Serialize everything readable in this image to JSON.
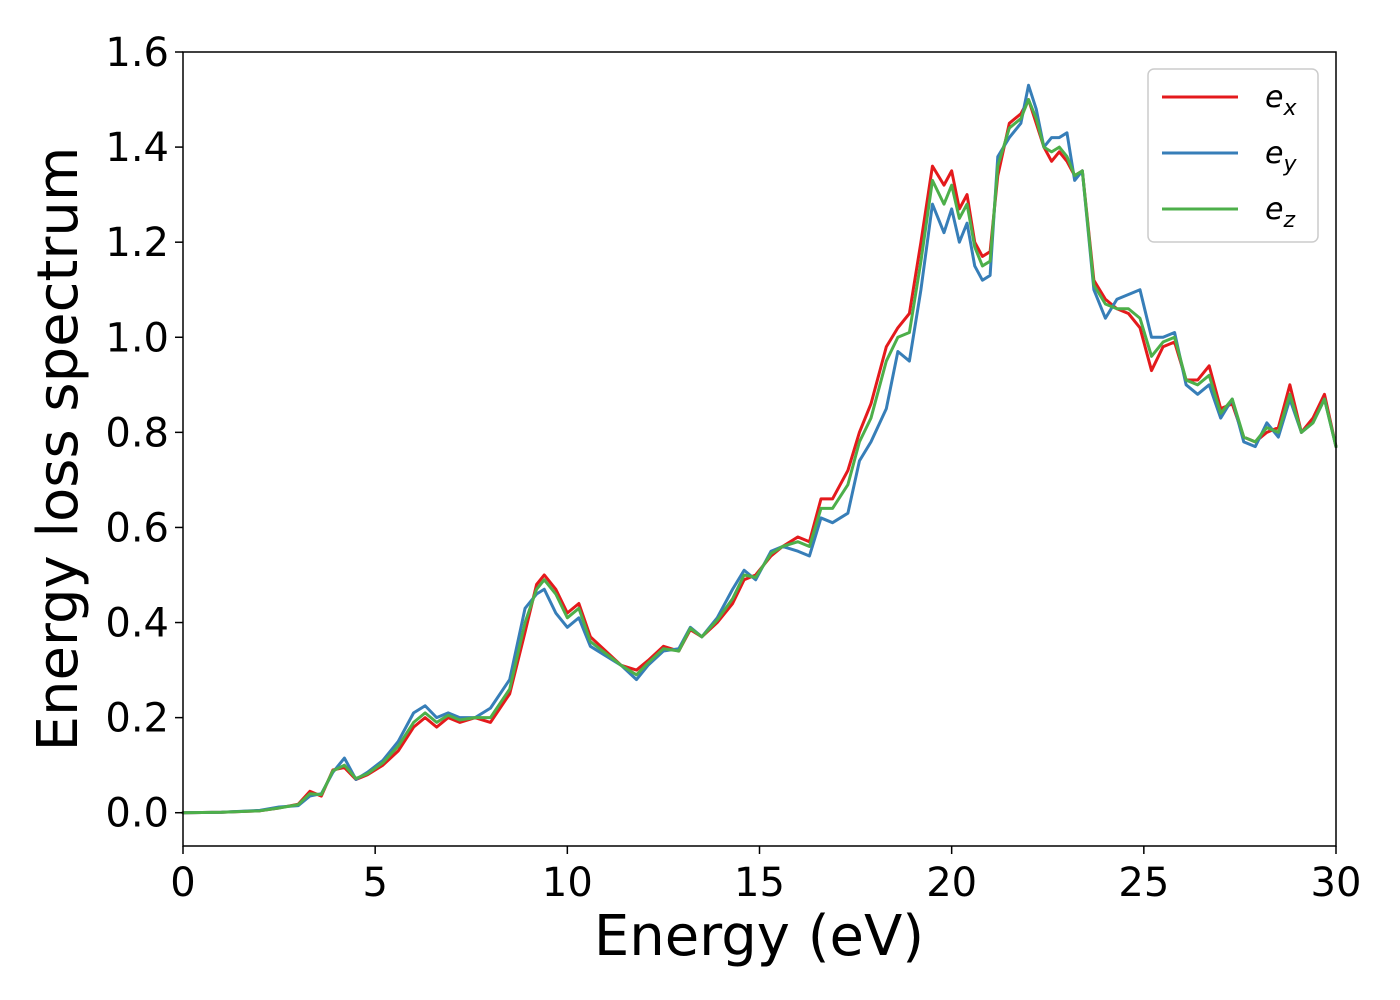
{
  "chart_data": {
    "type": "line",
    "title": "",
    "xlabel": "Energy (eV)",
    "ylabel": "Energy loss spectrum",
    "xlim": [
      0,
      30
    ],
    "ylim": [
      -0.07,
      1.6
    ],
    "xticks": [
      0,
      5,
      10,
      15,
      20,
      25,
      30
    ],
    "xtick_labels": [
      "0",
      "5",
      "10",
      "15",
      "20",
      "25",
      "30"
    ],
    "yticks": [
      0.0,
      0.2,
      0.4,
      0.6,
      0.8,
      1.0,
      1.2,
      1.4,
      1.6
    ],
    "ytick_labels": [
      "0.0",
      "0.2",
      "0.4",
      "0.6",
      "0.8",
      "1.0",
      "1.2",
      "1.4",
      "1.6"
    ],
    "grid": false,
    "legend_position": "top-right",
    "x": [
      0,
      1,
      2,
      2.5,
      3,
      3.3,
      3.6,
      3.9,
      4.2,
      4.5,
      4.8,
      5.2,
      5.6,
      6.0,
      6.3,
      6.6,
      6.9,
      7.2,
      7.6,
      8.0,
      8.5,
      8.9,
      9.2,
      9.4,
      9.7,
      10.0,
      10.3,
      10.6,
      11.0,
      11.4,
      11.8,
      12.1,
      12.5,
      12.9,
      13.2,
      13.5,
      13.9,
      14.3,
      14.6,
      14.9,
      15.3,
      15.6,
      16.0,
      16.3,
      16.6,
      16.9,
      17.3,
      17.6,
      17.9,
      18.3,
      18.6,
      18.9,
      19.2,
      19.5,
      19.8,
      20.0,
      20.2,
      20.4,
      20.6,
      20.8,
      21.0,
      21.2,
      21.5,
      21.8,
      22.0,
      22.2,
      22.4,
      22.6,
      22.8,
      23.0,
      23.2,
      23.4,
      23.7,
      24.0,
      24.3,
      24.6,
      24.9,
      25.2,
      25.5,
      25.8,
      26.1,
      26.4,
      26.7,
      27.0,
      27.3,
      27.6,
      27.9,
      28.2,
      28.5,
      28.8,
      29.1,
      29.4,
      29.7,
      30.0
    ],
    "series": [
      {
        "name": "e_x",
        "color": "#e41a1c",
        "values": [
          0.0,
          0.001,
          0.004,
          0.01,
          0.018,
          0.045,
          0.035,
          0.09,
          0.095,
          0.07,
          0.08,
          0.1,
          0.13,
          0.18,
          0.2,
          0.18,
          0.2,
          0.19,
          0.2,
          0.19,
          0.25,
          0.38,
          0.48,
          0.5,
          0.47,
          0.42,
          0.44,
          0.37,
          0.34,
          0.31,
          0.3,
          0.32,
          0.35,
          0.34,
          0.385,
          0.37,
          0.4,
          0.44,
          0.49,
          0.5,
          0.54,
          0.56,
          0.58,
          0.57,
          0.66,
          0.66,
          0.72,
          0.8,
          0.86,
          0.98,
          1.02,
          1.05,
          1.2,
          1.36,
          1.32,
          1.35,
          1.27,
          1.3,
          1.2,
          1.17,
          1.18,
          1.34,
          1.45,
          1.47,
          1.5,
          1.45,
          1.4,
          1.37,
          1.39,
          1.37,
          1.34,
          1.35,
          1.12,
          1.08,
          1.06,
          1.05,
          1.02,
          0.93,
          0.98,
          0.99,
          0.91,
          0.91,
          0.94,
          0.85,
          0.86,
          0.79,
          0.78,
          0.8,
          0.81,
          0.9,
          0.8,
          0.83,
          0.88,
          0.77
        ]
      },
      {
        "name": "e_y",
        "color": "#377eb8",
        "values": [
          0.0,
          0.001,
          0.005,
          0.012,
          0.015,
          0.035,
          0.04,
          0.085,
          0.115,
          0.07,
          0.085,
          0.11,
          0.15,
          0.21,
          0.225,
          0.2,
          0.21,
          0.2,
          0.2,
          0.22,
          0.28,
          0.43,
          0.46,
          0.47,
          0.42,
          0.39,
          0.41,
          0.35,
          0.33,
          0.31,
          0.28,
          0.31,
          0.34,
          0.345,
          0.39,
          0.37,
          0.41,
          0.47,
          0.51,
          0.49,
          0.55,
          0.56,
          0.55,
          0.54,
          0.62,
          0.61,
          0.63,
          0.74,
          0.78,
          0.85,
          0.97,
          0.95,
          1.1,
          1.28,
          1.22,
          1.27,
          1.2,
          1.24,
          1.15,
          1.12,
          1.13,
          1.38,
          1.42,
          1.45,
          1.53,
          1.48,
          1.4,
          1.42,
          1.42,
          1.43,
          1.33,
          1.35,
          1.1,
          1.04,
          1.08,
          1.09,
          1.1,
          1.0,
          1.0,
          1.01,
          0.9,
          0.88,
          0.9,
          0.83,
          0.87,
          0.78,
          0.77,
          0.82,
          0.79,
          0.87,
          0.8,
          0.82,
          0.87,
          0.77
        ]
      },
      {
        "name": "e_z",
        "color": "#4daf4a",
        "values": [
          0.0,
          0.001,
          0.004,
          0.01,
          0.017,
          0.04,
          0.038,
          0.088,
          0.1,
          0.072,
          0.082,
          0.105,
          0.14,
          0.19,
          0.21,
          0.19,
          0.205,
          0.195,
          0.2,
          0.2,
          0.26,
          0.4,
          0.47,
          0.49,
          0.46,
          0.41,
          0.43,
          0.36,
          0.335,
          0.31,
          0.29,
          0.315,
          0.345,
          0.34,
          0.388,
          0.37,
          0.405,
          0.45,
          0.5,
          0.495,
          0.545,
          0.56,
          0.57,
          0.56,
          0.64,
          0.64,
          0.69,
          0.78,
          0.83,
          0.95,
          1.0,
          1.01,
          1.16,
          1.33,
          1.28,
          1.32,
          1.25,
          1.28,
          1.19,
          1.15,
          1.16,
          1.36,
          1.44,
          1.46,
          1.5,
          1.46,
          1.4,
          1.39,
          1.4,
          1.38,
          1.34,
          1.35,
          1.11,
          1.07,
          1.06,
          1.06,
          1.04,
          0.96,
          0.99,
          1.0,
          0.91,
          0.9,
          0.92,
          0.84,
          0.87,
          0.79,
          0.78,
          0.81,
          0.8,
          0.88,
          0.8,
          0.82,
          0.87,
          0.77
        ]
      }
    ]
  },
  "legend": {
    "items": [
      {
        "base": "e",
        "sub": "x",
        "color": "#e41a1c"
      },
      {
        "base": "e",
        "sub": "y",
        "color": "#377eb8"
      },
      {
        "base": "e",
        "sub": "z",
        "color": "#4daf4a"
      }
    ]
  }
}
